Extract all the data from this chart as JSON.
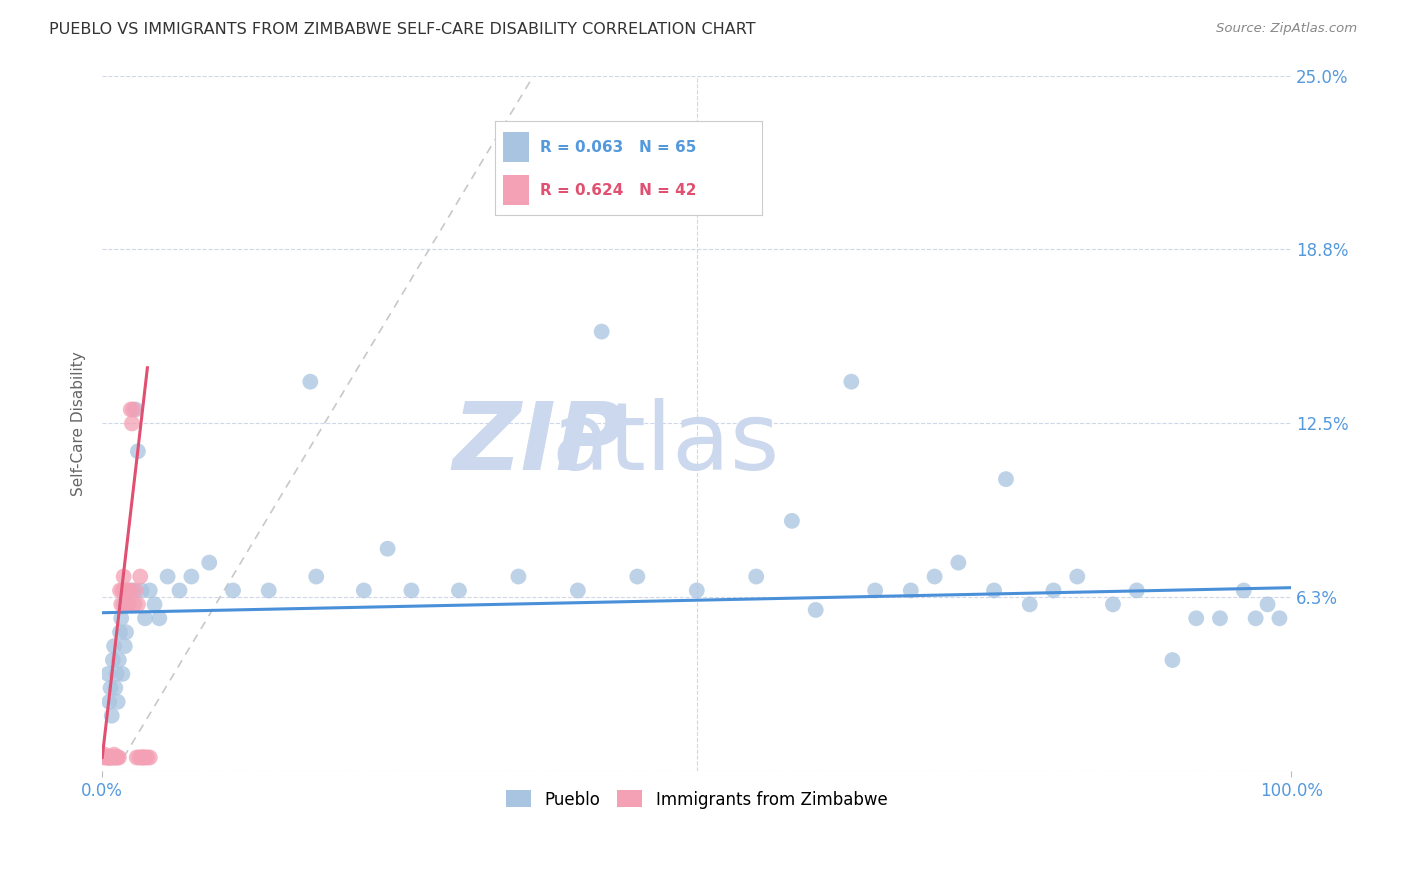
{
  "title": "PUEBLO VS IMMIGRANTS FROM ZIMBABWE SELF-CARE DISABILITY CORRELATION CHART",
  "source": "Source: ZipAtlas.com",
  "ylabel": "Self-Care Disability",
  "xlim": [
    0,
    1.0
  ],
  "ylim": [
    0,
    0.25
  ],
  "yticks": [
    0.0,
    0.0625,
    0.125,
    0.1875,
    0.25
  ],
  "ytick_labels": [
    "",
    "6.3%",
    "12.5%",
    "18.8%",
    "25.0%"
  ],
  "xticks": [
    0.0,
    1.0
  ],
  "xtick_labels": [
    "0.0%",
    "100.0%"
  ],
  "pueblo_color": "#a8c4e0",
  "zim_color": "#f4a0b5",
  "trendline_blue_color": "#4a90d9",
  "trendline_pink_color": "#e05070",
  "dashed_line_color": "#c8c8c8",
  "R_pueblo": 0.063,
  "N_pueblo": 65,
  "R_zim": 0.624,
  "N_zim": 42,
  "legend_blue_label": "Pueblo",
  "legend_pink_label": "Immigrants from Zimbabwe",
  "pueblo_x": [
    0.005,
    0.006,
    0.007,
    0.008,
    0.009,
    0.01,
    0.011,
    0.012,
    0.013,
    0.014,
    0.015,
    0.016,
    0.017,
    0.018,
    0.019,
    0.02,
    0.022,
    0.024,
    0.026,
    0.028,
    0.03,
    0.033,
    0.036,
    0.04,
    0.044,
    0.048,
    0.055,
    0.065,
    0.075,
    0.09,
    0.11,
    0.14,
    0.18,
    0.22,
    0.26,
    0.3,
    0.35,
    0.4,
    0.45,
    0.5,
    0.55,
    0.6,
    0.63,
    0.65,
    0.68,
    0.7,
    0.72,
    0.75,
    0.78,
    0.8,
    0.82,
    0.85,
    0.87,
    0.9,
    0.92,
    0.94,
    0.96,
    0.97,
    0.98,
    0.99,
    0.175,
    0.24,
    0.42,
    0.58,
    0.76
  ],
  "pueblo_y": [
    0.035,
    0.025,
    0.03,
    0.02,
    0.04,
    0.045,
    0.03,
    0.035,
    0.025,
    0.04,
    0.05,
    0.055,
    0.035,
    0.06,
    0.045,
    0.05,
    0.06,
    0.065,
    0.065,
    0.13,
    0.115,
    0.065,
    0.055,
    0.065,
    0.06,
    0.055,
    0.07,
    0.065,
    0.07,
    0.075,
    0.065,
    0.065,
    0.07,
    0.065,
    0.065,
    0.065,
    0.07,
    0.065,
    0.07,
    0.065,
    0.07,
    0.058,
    0.14,
    0.065,
    0.065,
    0.07,
    0.075,
    0.065,
    0.06,
    0.065,
    0.07,
    0.06,
    0.065,
    0.04,
    0.055,
    0.055,
    0.065,
    0.055,
    0.06,
    0.055,
    0.14,
    0.08,
    0.158,
    0.09,
    0.105
  ],
  "zim_x": [
    0.001,
    0.002,
    0.003,
    0.004,
    0.005,
    0.005,
    0.006,
    0.006,
    0.007,
    0.007,
    0.008,
    0.009,
    0.01,
    0.01,
    0.011,
    0.012,
    0.013,
    0.014,
    0.015,
    0.016,
    0.017,
    0.018,
    0.019,
    0.02,
    0.021,
    0.022,
    0.023,
    0.024,
    0.025,
    0.026,
    0.027,
    0.028,
    0.029,
    0.03,
    0.031,
    0.032,
    0.033,
    0.034,
    0.035,
    0.036,
    0.038,
    0.04
  ],
  "zim_y": [
    0.005,
    0.006,
    0.005,
    0.005,
    0.005,
    0.005,
    0.005,
    0.005,
    0.005,
    0.005,
    0.005,
    0.005,
    0.005,
    0.006,
    0.005,
    0.005,
    0.005,
    0.005,
    0.065,
    0.06,
    0.065,
    0.07,
    0.065,
    0.06,
    0.065,
    0.06,
    0.065,
    0.13,
    0.125,
    0.13,
    0.06,
    0.065,
    0.005,
    0.06,
    0.005,
    0.07,
    0.005,
    0.005,
    0.005,
    0.005,
    0.005,
    0.005
  ],
  "background_color": "#ffffff",
  "grid_color": "#d0d8e8",
  "tick_label_color": "#5599dd",
  "title_color": "#333333",
  "watermark_zip": "ZIP",
  "watermark_atlas": "atlas",
  "watermark_color": "#ccd8ee",
  "watermark_fontsize": 68
}
